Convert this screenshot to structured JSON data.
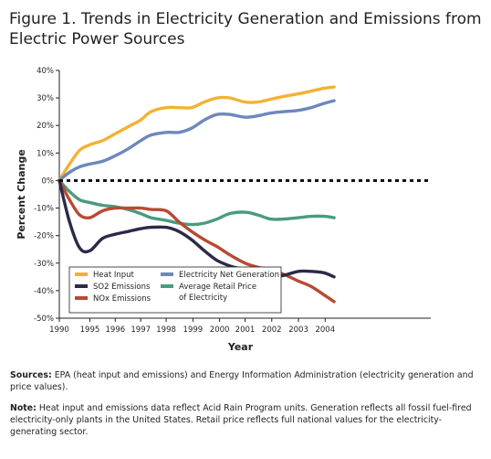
{
  "title": "Figure 1. Trends in Electricity Generation and Emissions from Electric Power Sources",
  "chart_data": {
    "type": "line",
    "ylabel": "Percent Change",
    "xlabel": "Year",
    "ylim": [
      -50,
      40
    ],
    "yticks": [
      -50,
      -40,
      -30,
      -20,
      -10,
      0,
      10,
      20,
      30,
      40
    ],
    "ytick_labels": [
      "-50%",
      "-40%",
      "-30%",
      "-20%",
      "-10%",
      "0%",
      "10%",
      "20%",
      "30%",
      "40%"
    ],
    "xlim": [
      1990,
      2004.6
    ],
    "xticks": [
      1990,
      1995,
      1996,
      1997,
      1998,
      1999,
      2000,
      2001,
      2002,
      2003,
      2004
    ],
    "xtick_positions": [
      1990,
      1991.2,
      1992.2,
      1993.2,
      1994.2,
      1995.25,
      1996.3,
      1997.3,
      1998.35,
      1999.4,
      2000.45
    ],
    "zero_line": "dotted",
    "legend_position": "bottom-left",
    "series": [
      {
        "name": "Heat Input",
        "color": "#f2b233",
        "x": [
          1990,
          1990.4,
          1990.8,
          1991.2,
          1991.7,
          1992.2,
          1992.7,
          1993.2,
          1993.6,
          1994.2,
          1994.7,
          1995.2,
          1995.7,
          1996.2,
          1996.7,
          1997.3,
          1997.8,
          1998.3,
          1998.8,
          1999.4,
          1999.9,
          2000.4,
          2000.8
        ],
        "values": [
          0,
          6,
          11,
          13,
          14.5,
          17,
          19.5,
          22,
          25,
          26.5,
          26.5,
          26.5,
          28.5,
          30,
          30,
          28.5,
          28.5,
          29.5,
          30.5,
          31.5,
          32.5,
          33.5,
          34
        ]
      },
      {
        "name": "Electricity Net Generation",
        "color": "#6e87bd",
        "x": [
          1990,
          1990.4,
          1990.8,
          1991.2,
          1991.7,
          1992.2,
          1992.7,
          1993.2,
          1993.6,
          1994.2,
          1994.7,
          1995.2,
          1995.7,
          1996.2,
          1996.7,
          1997.3,
          1997.8,
          1998.3,
          1998.8,
          1999.4,
          1999.9,
          2000.4,
          2000.8
        ],
        "values": [
          0,
          3,
          5,
          6,
          7,
          9,
          11.5,
          14.5,
          16.5,
          17.5,
          17.5,
          19,
          22,
          24,
          24,
          23,
          23.5,
          24.5,
          25,
          25.5,
          26.5,
          28,
          29
        ]
      },
      {
        "name": "Average Retail Price of Electricity",
        "color": "#4a9b7d",
        "x": [
          1990,
          1990.4,
          1990.8,
          1991.2,
          1991.7,
          1992.2,
          1992.7,
          1993.2,
          1993.6,
          1994.2,
          1994.7,
          1995.2,
          1995.7,
          1996.2,
          1996.7,
          1997.3,
          1997.8,
          1998.3,
          1998.8,
          1999.4,
          1999.9,
          2000.4,
          2000.8
        ],
        "values": [
          0,
          -4,
          -7,
          -8,
          -9,
          -9.5,
          -10.5,
          -12,
          -13.5,
          -14.5,
          -15.5,
          -16,
          -15.5,
          -14,
          -12,
          -11.5,
          -12.5,
          -14,
          -14,
          -13.5,
          -13,
          -13,
          -13.5
        ]
      },
      {
        "name": "NOx Emissions",
        "color": "#b84a32",
        "x": [
          1990,
          1990.4,
          1990.8,
          1991.2,
          1991.7,
          1992.2,
          1992.7,
          1993.2,
          1993.6,
          1994.2,
          1994.7,
          1995.2,
          1995.7,
          1996.2,
          1996.7,
          1997.3,
          1997.8,
          1998.3,
          1998.8,
          1999.4,
          1999.9,
          2000.4,
          2000.8
        ],
        "values": [
          0,
          -7,
          -12.5,
          -13.5,
          -11,
          -10,
          -10,
          -10,
          -10.5,
          -11,
          -15,
          -18.5,
          -21.5,
          -24,
          -27,
          -30,
          -31.5,
          -32.5,
          -34,
          -36.5,
          -38.5,
          -41.5,
          -44
        ]
      },
      {
        "name": "SO2 Emissions",
        "color": "#2a2a49",
        "x": [
          1990,
          1990.4,
          1990.8,
          1991.2,
          1991.7,
          1992.2,
          1992.7,
          1993.2,
          1993.6,
          1994.2,
          1994.7,
          1995.2,
          1995.7,
          1996.2,
          1996.7,
          1997.3,
          1997.8,
          1998.3,
          1998.8,
          1999.4,
          1999.9,
          2000.4,
          2000.8
        ],
        "values": [
          0,
          -15,
          -24.5,
          -25.5,
          -21,
          -19.5,
          -18.5,
          -17.5,
          -17,
          -17,
          -18.5,
          -21.5,
          -25.5,
          -29,
          -31,
          -32.5,
          -34,
          -35,
          -34.5,
          -33,
          -33,
          -33.5,
          -35
        ]
      }
    ],
    "legend": [
      {
        "label": "Heat Input",
        "color": "#f2b233"
      },
      {
        "label": "SO2 Emissions",
        "color": "#2a2a49"
      },
      {
        "label": "NOx Emissions",
        "color": "#b84a32"
      },
      {
        "label": "Electricity Net Generation",
        "color": "#6e87bd"
      },
      {
        "label": "Average Retail Price",
        "color": "#4a9b7d"
      },
      {
        "label": "of Electricity",
        "color": "#4a9b7d"
      }
    ]
  },
  "notes": {
    "sources_label": "Sources:",
    "sources_text": "EPA (heat input and emissions) and Energy Information Administration (electricity generation and price values).",
    "note_label": "Note:",
    "note_text": "Heat input and emissions data reflect Acid Rain Program units. Generation reflects all fossil fuel-fired electricity-only plants in the United States. Retail price reflects full national values for the electricity-generating sector."
  }
}
